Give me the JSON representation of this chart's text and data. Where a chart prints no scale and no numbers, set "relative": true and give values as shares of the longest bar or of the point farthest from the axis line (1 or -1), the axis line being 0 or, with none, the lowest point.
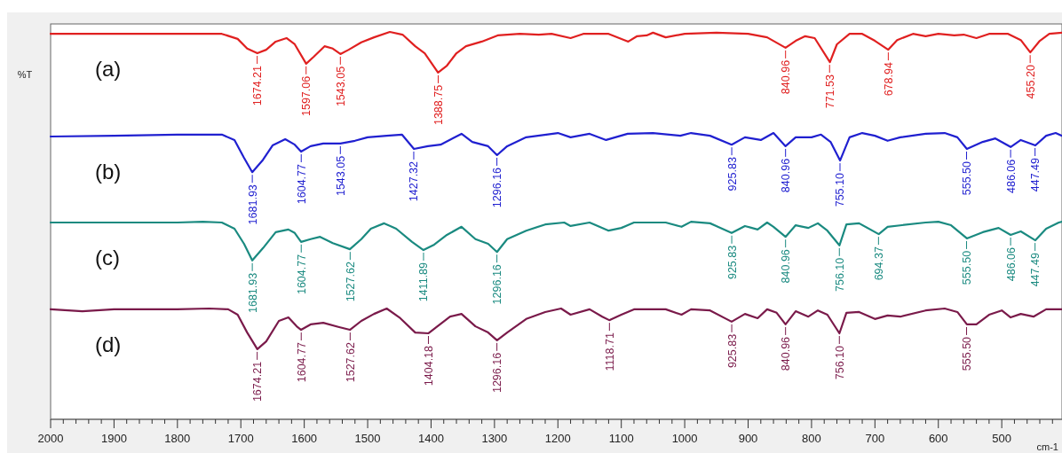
{
  "chart_data": {
    "type": "line",
    "relative": true,
    "ylabel": "%T",
    "xlabel": "cm-1",
    "xlim": [
      2000,
      405
    ],
    "xticks": [
      2000,
      {
        "value": 1980,
        "label": null
      },
      {
        "value": 1960,
        "label": null
      },
      {
        "value": 1940,
        "label": null
      },
      {
        "value": 1920,
        "label": null
      },
      1900,
      {
        "value": 1880,
        "label": null
      },
      {
        "value": 1860,
        "label": null
      },
      {
        "value": 1840,
        "label": null
      },
      {
        "value": 1820,
        "label": null
      },
      1800,
      {
        "value": 1780,
        "label": null
      },
      {
        "value": 1760,
        "label": null
      },
      {
        "value": 1740,
        "label": null
      },
      {
        "value": 1720,
        "label": null
      },
      1700,
      {
        "value": 1680,
        "label": null
      },
      {
        "value": 1660,
        "label": null
      },
      {
        "value": 1640,
        "label": null
      },
      {
        "value": 1620,
        "label": null
      },
      1600,
      {
        "value": 1580,
        "label": null
      },
      {
        "value": 1560,
        "label": null
      },
      {
        "value": 1540,
        "label": null
      },
      {
        "value": 1520,
        "label": null
      },
      1500,
      {
        "value": 1480,
        "label": null
      },
      {
        "value": 1460,
        "label": null
      },
      {
        "value": 1440,
        "label": null
      },
      {
        "value": 1420,
        "label": null
      },
      1400,
      {
        "value": 1380,
        "label": null
      },
      {
        "value": 1360,
        "label": null
      },
      {
        "value": 1340,
        "label": null
      },
      {
        "value": 1320,
        "label": null
      },
      1300,
      {
        "value": 1280,
        "label": null
      },
      {
        "value": 1260,
        "label": null
      },
      {
        "value": 1240,
        "label": null
      },
      {
        "value": 1220,
        "label": null
      },
      1200,
      {
        "value": 1180,
        "label": null
      },
      {
        "value": 1160,
        "label": null
      },
      {
        "value": 1140,
        "label": null
      },
      {
        "value": 1120,
        "label": null
      },
      1100,
      {
        "value": 1080,
        "label": null
      },
      {
        "value": 1060,
        "label": null
      },
      {
        "value": 1040,
        "label": null
      },
      {
        "value": 1020,
        "label": null
      },
      1000,
      {
        "value": 980,
        "label": null
      },
      {
        "value": 960,
        "label": null
      },
      {
        "value": 940,
        "label": null
      },
      {
        "value": 920,
        "label": null
      },
      900,
      {
        "value": 880,
        "label": null
      },
      {
        "value": 860,
        "label": null
      },
      {
        "value": 840,
        "label": null
      },
      {
        "value": 820,
        "label": null
      },
      800,
      {
        "value": 780,
        "label": null
      },
      {
        "value": 760,
        "label": null
      },
      {
        "value": 740,
        "label": null
      },
      {
        "value": 720,
        "label": null
      },
      700,
      {
        "value": 680,
        "label": null
      },
      {
        "value": 660,
        "label": null
      },
      {
        "value": 640,
        "label": null
      },
      {
        "value": 620,
        "label": null
      },
      600,
      {
        "value": 580,
        "label": null
      },
      {
        "value": 560,
        "label": null
      },
      {
        "value": 540,
        "label": null
      },
      {
        "value": 520,
        "label": null
      },
      500,
      {
        "value": 480,
        "label": null
      },
      {
        "value": 460,
        "label": null
      },
      {
        "value": 440,
        "label": null
      },
      {
        "value": 420,
        "label": null
      }
    ],
    "tick_labels": "x",
    "grid": false,
    "marker": "none",
    "line_style": "solid",
    "series": [
      {
        "name": "(a)",
        "color": "#e02020",
        "x": [
          2000,
          1900,
          1800,
          1730,
          1705,
          1690,
          1674,
          1660,
          1645,
          1628,
          1615,
          1597,
          1585,
          1568,
          1555,
          1543,
          1530,
          1510,
          1490,
          1465,
          1445,
          1425,
          1410,
          1389,
          1375,
          1360,
          1345,
          1320,
          1295,
          1260,
          1230,
          1210,
          1180,
          1160,
          1120,
          1089,
          1075,
          1060,
          1050,
          1030,
          1000,
          950,
          900,
          870,
          841,
          825,
          810,
          795,
          771,
          760,
          740,
          720,
          700,
          679,
          665,
          640,
          620,
          600,
          575,
          560,
          540,
          520,
          490,
          470,
          455,
          440,
          425,
          405
        ],
        "values": [
          0.995,
          0.995,
          0.995,
          0.995,
          0.982,
          0.957,
          0.945,
          0.954,
          0.975,
          0.984,
          0.968,
          0.918,
          0.936,
          0.963,
          0.957,
          0.943,
          0.954,
          0.973,
          0.986,
          1.0,
          0.993,
          0.963,
          0.945,
          0.895,
          0.913,
          0.945,
          0.963,
          0.975,
          0.991,
          0.995,
          0.993,
          0.995,
          0.984,
          0.995,
          0.995,
          0.975,
          0.989,
          0.991,
          0.998,
          0.986,
          0.995,
          0.998,
          0.995,
          0.986,
          0.959,
          0.977,
          0.989,
          0.984,
          0.922,
          0.968,
          0.995,
          0.995,
          0.977,
          0.954,
          0.979,
          0.995,
          0.989,
          0.995,
          0.991,
          0.993,
          0.984,
          0.995,
          0.995,
          0.979,
          0.947,
          0.977,
          0.995,
          0.998
        ]
      },
      {
        "name": "(b)",
        "color": "#2020d0",
        "x": [
          2000,
          1900,
          1800,
          1730,
          1710,
          1695,
          1682,
          1665,
          1650,
          1630,
          1615,
          1605,
          1590,
          1570,
          1543,
          1520,
          1500,
          1470,
          1446,
          1427,
          1405,
          1385,
          1352,
          1335,
          1310,
          1296,
          1280,
          1250,
          1200,
          1180,
          1150,
          1124,
          1090,
          1050,
          1007,
          990,
          960,
          926,
          905,
          880,
          860,
          841,
          825,
          800,
          785,
          770,
          755,
          740,
          720,
          700,
          680,
          660,
          620,
          590,
          570,
          555,
          530,
          510,
          486,
          470,
          447,
          430,
          415,
          405
        ],
        "values": [
          0.73,
          0.732,
          0.735,
          0.735,
          0.721,
          0.675,
          0.638,
          0.67,
          0.707,
          0.723,
          0.709,
          0.691,
          0.705,
          0.712,
          0.712,
          0.719,
          0.728,
          0.732,
          0.735,
          0.698,
          0.705,
          0.709,
          0.737,
          0.716,
          0.705,
          0.682,
          0.705,
          0.728,
          0.739,
          0.728,
          0.737,
          0.721,
          0.737,
          0.739,
          0.732,
          0.739,
          0.732,
          0.709,
          0.728,
          0.721,
          0.739,
          0.705,
          0.728,
          0.728,
          0.735,
          0.716,
          0.668,
          0.728,
          0.739,
          0.732,
          0.719,
          0.728,
          0.737,
          0.739,
          0.728,
          0.698,
          0.716,
          0.725,
          0.703,
          0.721,
          0.707,
          0.732,
          0.739,
          0.732
        ]
      },
      {
        "name": "(c)",
        "color": "#1a8a80",
        "x": [
          2000,
          1900,
          1800,
          1760,
          1730,
          1710,
          1695,
          1682,
          1665,
          1645,
          1625,
          1615,
          1605,
          1590,
          1575,
          1555,
          1528,
          1510,
          1495,
          1474,
          1455,
          1430,
          1412,
          1395,
          1375,
          1352,
          1330,
          1310,
          1296,
          1280,
          1250,
          1220,
          1190,
          1180,
          1150,
          1120,
          1100,
          1080,
          1030,
          1005,
          990,
          960,
          926,
          905,
          885,
          870,
          860,
          841,
          825,
          805,
          790,
          775,
          756,
          745,
          725,
          694,
          680,
          620,
          600,
          580,
          555,
          530,
          505,
          486,
          470,
          447,
          430,
          410,
          405
        ],
        "values": [
          0.508,
          0.508,
          0.508,
          0.51,
          0.508,
          0.492,
          0.453,
          0.41,
          0.442,
          0.483,
          0.49,
          0.481,
          0.458,
          0.465,
          0.471,
          0.455,
          0.439,
          0.465,
          0.492,
          0.506,
          0.492,
          0.458,
          0.437,
          0.451,
          0.476,
          0.497,
          0.465,
          0.453,
          0.432,
          0.465,
          0.487,
          0.503,
          0.508,
          0.499,
          0.508,
          0.487,
          0.494,
          0.508,
          0.508,
          0.497,
          0.51,
          0.506,
          0.481,
          0.499,
          0.49,
          0.508,
          0.497,
          0.471,
          0.501,
          0.494,
          0.506,
          0.487,
          0.449,
          0.503,
          0.506,
          0.478,
          0.497,
          0.508,
          0.51,
          0.501,
          0.467,
          0.483,
          0.494,
          0.476,
          0.485,
          0.462,
          0.492,
          0.508,
          0.51
        ]
      },
      {
        "name": "(d)",
        "color": "#7a1a4a",
        "x": [
          2000,
          1950,
          1900,
          1800,
          1750,
          1720,
          1705,
          1690,
          1674,
          1660,
          1640,
          1625,
          1612,
          1605,
          1590,
          1570,
          1545,
          1528,
          1510,
          1490,
          1470,
          1450,
          1425,
          1404,
          1390,
          1370,
          1352,
          1330,
          1310,
          1296,
          1280,
          1250,
          1220,
          1195,
          1180,
          1150,
          1130,
          1119,
          1100,
          1080,
          1030,
          1005,
          990,
          960,
          926,
          905,
          885,
          870,
          855,
          841,
          825,
          805,
          790,
          775,
          756,
          745,
          725,
          700,
          680,
          660,
          620,
          590,
          570,
          555,
          540,
          520,
          500,
          486,
          470,
          450,
          430,
          405
        ],
        "values": [
          0.284,
          0.279,
          0.284,
          0.284,
          0.286,
          0.284,
          0.27,
          0.224,
          0.181,
          0.201,
          0.254,
          0.263,
          0.24,
          0.231,
          0.245,
          0.249,
          0.238,
          0.231,
          0.254,
          0.272,
          0.286,
          0.263,
          0.224,
          0.222,
          0.24,
          0.265,
          0.272,
          0.24,
          0.224,
          0.204,
          0.224,
          0.259,
          0.277,
          0.286,
          0.27,
          0.284,
          0.265,
          0.256,
          0.27,
          0.284,
          0.284,
          0.27,
          0.284,
          0.281,
          0.252,
          0.272,
          0.261,
          0.284,
          0.275,
          0.245,
          0.279,
          0.265,
          0.281,
          0.27,
          0.222,
          0.275,
          0.277,
          0.259,
          0.268,
          0.265,
          0.281,
          0.286,
          0.277,
          0.245,
          0.245,
          0.27,
          0.281,
          0.263,
          0.272,
          0.265,
          0.284,
          0.284
        ]
      }
    ],
    "annotations": [
      {
        "text": "1674.21",
        "x": 1674.21,
        "y": 0.945
      },
      {
        "text": "1597.06",
        "x": 1597.06,
        "y": 0.918
      },
      {
        "text": "1543.05",
        "x": 1543.05,
        "y": 0.943
      },
      {
        "text": "1388.75",
        "x": 1388.75,
        "y": 0.895
      },
      {
        "text": "840.96",
        "x": 840.96,
        "y": 0.959
      },
      {
        "text": "771.53",
        "x": 771.53,
        "y": 0.922
      },
      {
        "text": "678.94",
        "x": 678.94,
        "y": 0.954
      },
      {
        "text": "455.20",
        "x": 455.2,
        "y": 0.947
      },
      {
        "text": "1681.93",
        "x": 1681.93,
        "y": 0.638
      },
      {
        "text": "1604.77",
        "x": 1604.77,
        "y": 0.691
      },
      {
        "text": "1543.05",
        "x": 1543.05,
        "y": 0.712
      },
      {
        "text": "1427.32",
        "x": 1427.32,
        "y": 0.698
      },
      {
        "text": "1296.16",
        "x": 1296.16,
        "y": 0.682
      },
      {
        "text": "925.83",
        "x": 925.83,
        "y": 0.709
      },
      {
        "text": "840.96",
        "x": 840.96,
        "y": 0.705
      },
      {
        "text": "755.10",
        "x": 755.1,
        "y": 0.668
      },
      {
        "text": "555.50",
        "x": 555.5,
        "y": 0.698
      },
      {
        "text": "486.06",
        "x": 486.06,
        "y": 0.703
      },
      {
        "text": "447.49",
        "x": 447.49,
        "y": 0.707
      },
      {
        "text": "1681.93",
        "x": 1681.93,
        "y": 0.41
      },
      {
        "text": "1604.77",
        "x": 1604.77,
        "y": 0.458
      },
      {
        "text": "1527.62",
        "x": 1527.62,
        "y": 0.439
      },
      {
        "text": "1411.89",
        "x": 1411.89,
        "y": 0.437
      },
      {
        "text": "1296.16",
        "x": 1296.16,
        "y": 0.432
      },
      {
        "text": "925.83",
        "x": 925.83,
        "y": 0.481
      },
      {
        "text": "840.96",
        "x": 840.96,
        "y": 0.471
      },
      {
        "text": "756.10",
        "x": 756.1,
        "y": 0.449
      },
      {
        "text": "694.37",
        "x": 694.37,
        "y": 0.478
      },
      {
        "text": "555.50",
        "x": 555.5,
        "y": 0.467
      },
      {
        "text": "486.06",
        "x": 486.06,
        "y": 0.476
      },
      {
        "text": "447.49",
        "x": 447.49,
        "y": 0.462
      },
      {
        "text": "1674.21",
        "x": 1674.21,
        "y": 0.181
      },
      {
        "text": "1604.77",
        "x": 1604.77,
        "y": 0.231
      },
      {
        "text": "1527.62",
        "x": 1527.62,
        "y": 0.231
      },
      {
        "text": "1404.18",
        "x": 1404.18,
        "y": 0.222
      },
      {
        "text": "1296.16",
        "x": 1296.16,
        "y": 0.204
      },
      {
        "text": "1118.71",
        "x": 1118.71,
        "y": 0.256
      },
      {
        "text": "925.83",
        "x": 925.83,
        "y": 0.252
      },
      {
        "text": "840.96",
        "x": 840.96,
        "y": 0.245
      },
      {
        "text": "756.10",
        "x": 756.1,
        "y": 0.222
      },
      {
        "text": "555.50",
        "x": 555.5,
        "y": 0.245
      }
    ]
  }
}
